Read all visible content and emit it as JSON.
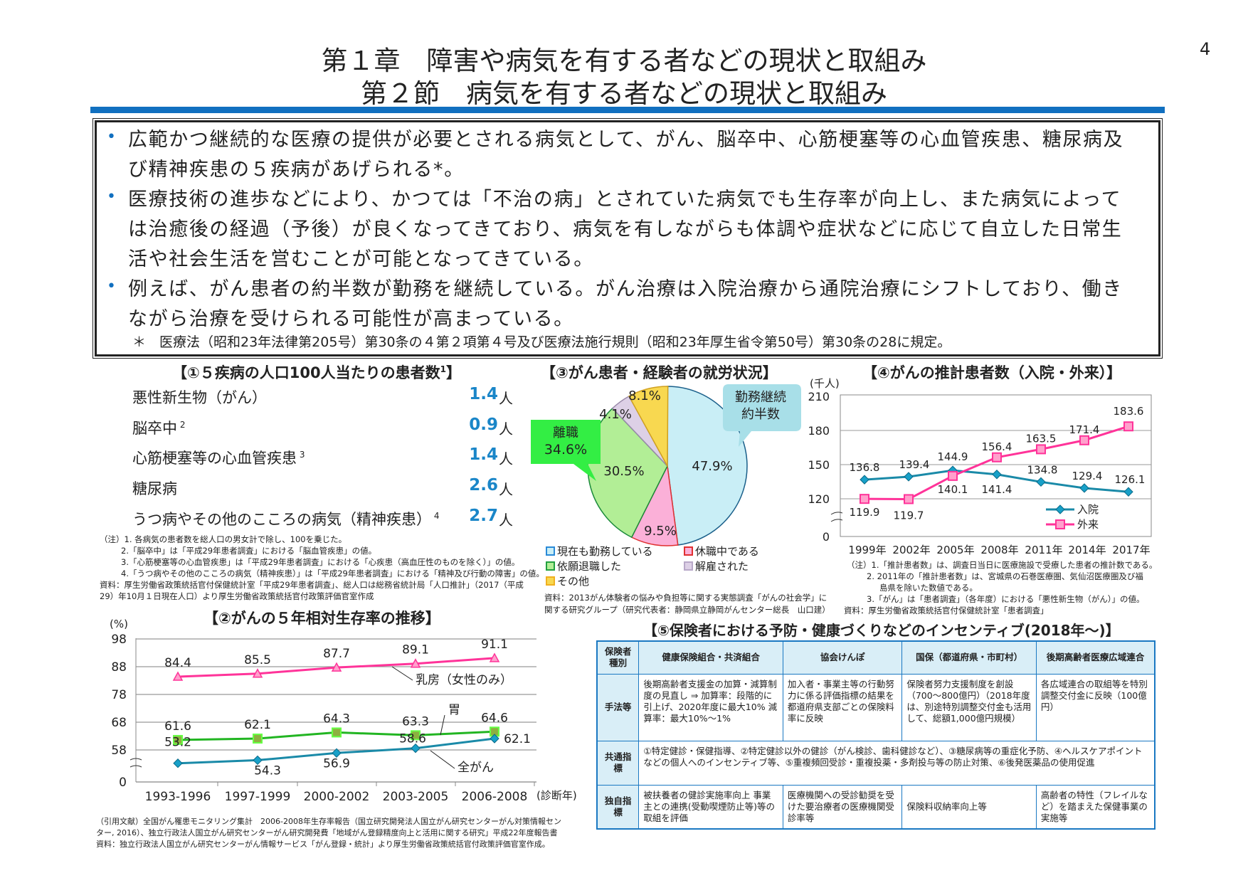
{
  "header": {
    "chapter_title": "第１章　障害や病気を有する者などの現状と取組み",
    "section_title": "第２節　病気を有する者などの現状と取組み",
    "page_number": "4"
  },
  "summary": {
    "bullet_glyph": "•",
    "bullets": [
      {
        "lines": [
          "広範かつ継続的な医療の提供が必要とされる病気として、がん、脳卒中、心筋梗塞等の心血管疾患、糖尿病及",
          "び精神疾患の５疾病があげられる*。"
        ]
      },
      {
        "lines": [
          "医療技術の進歩などにより、かつては「不治の病」とされていた病気でも生存率が向上し、また病気によって",
          "は治癒後の経過（予後）が良くなってきており、病気を有しながらも体調や症状などに応じて自立した日常生",
          "活や社会生活を営むことが可能となってきている。"
        ]
      },
      {
        "lines": [
          "例えば、がん患者の約半数が勤務を継続している。がん治療は入院治療から通院治療にシフトしており、働き",
          "ながら治療を受けられる可能性が高まっている。"
        ]
      }
    ],
    "footnote": "＊　医療法（昭和23年法律第205号）第30条の４第２項第４号及び医療法施行規則（昭和23年厚生省令第50号）第30条の28に規定。"
  },
  "panel1": {
    "title": "【①５疾病の人口100人当たりの患者数",
    "title_sup": "1",
    "title_end": "】",
    "unit": "人",
    "rows": [
      {
        "label": "悪性新生物（がん）",
        "sup": "",
        "value": "1.4"
      },
      {
        "label": "脳卒中",
        "sup": "2",
        "value": "0.9"
      },
      {
        "label": "心筋梗塞等の心血管疾患",
        "sup": "3",
        "value": "1.4"
      },
      {
        "label": "糖尿病",
        "sup": "",
        "value": "2.6"
      },
      {
        "label": "うつ病やその他のこころの病気（精神疾患）",
        "sup": "4",
        "value": "2.7"
      }
    ],
    "notes": [
      "（注）1. 各病気の患者数を総人口の男女計で除し、100を乗じた。",
      "2.「脳卒中」は「平成29年患者調査」における「脳血管疾患」の値。",
      "3.「心筋梗塞等の心血管疾患」は「平成29年患者調査」における「心疾患（高血圧性のものを除く）」の値。",
      "4.「うつ病やその他のこころの病気（精神疾患）」は「平成29年患者調査」における「精神及び行動の障害」の値。",
      "資料：厚生労働省政策統括官付保健統計室「平成29年患者調査」、総人口は総務省統計局「人口推計」（2017（平成",
      "29）年10月１日現在人口）より厚生労働省政策統括官付政策評価官室作成"
    ]
  },
  "chart_data": [
    {
      "type": "line",
      "title": "【②がんの５年相対生存率の推移】",
      "ylabel": "(%)",
      "xlabel": "(診断年)",
      "categories": [
        "1993-1996",
        "1997-1999",
        "2000-2002",
        "2003-2005",
        "2006-2008"
      ],
      "yticks": [
        0,
        58,
        68,
        78,
        88,
        98
      ],
      "axis_break": true,
      "grid": true,
      "series": [
        {
          "name": "乳房（女性のみ）",
          "color": "#ff3399",
          "marker": "triangle",
          "values": [
            84.4,
            85.5,
            87.7,
            89.1,
            91.1
          ]
        },
        {
          "name": "胃",
          "color": "#22b522",
          "marker": "square",
          "values": [
            61.6,
            62.1,
            64.3,
            63.3,
            64.6
          ]
        },
        {
          "name": "全がん",
          "color": "#1a8aa8",
          "marker": "diamond",
          "values": [
            53.2,
            54.3,
            56.9,
            58.6,
            62.1
          ]
        }
      ],
      "sources": [
        "（引用文献）全国がん罹患モニタリング集計　2006-2008年生存率報告（国立研究開発法人国立がん研究センターがん対策情報セン",
        "ター, 2016）、独立行政法人国立がん研究センターがん研究開発費「地域がん登録精度向上と活用に関する研究」平成22年度報告書",
        "資料：独立行政法人国立がん研究センターがん情報サービス「がん登録・統計」より厚生労働省政策統括官付政策評価官室作成。"
      ]
    },
    {
      "type": "pie",
      "title": "【③がん患者・経験者の就労状況】",
      "slices": [
        {
          "name": "現在も勤務している",
          "value": 47.9,
          "label": "47.9%",
          "color": "#c9eef6"
        },
        {
          "name": "休職中である",
          "value": 9.5,
          "label": "9.5%",
          "color": "#fbb0d8"
        },
        {
          "name": "依願退職した",
          "value": 30.5,
          "label": "30.5%",
          "color": "#b2ee96"
        },
        {
          "name": "解雇された",
          "value": 4.1,
          "label": "4.1%",
          "color": "#ddd0e6"
        },
        {
          "name": "その他",
          "value": 8.1,
          "label": "8.1%",
          "color": "#f8d850"
        }
      ],
      "callouts": {
        "left_line1": "離職",
        "left_line2": "34.6%",
        "right_line1": "勤務継続",
        "right_line2": "約半数"
      },
      "legend_order": [
        "現在も勤務している",
        "休職中である",
        "依願退職した",
        "解雇された",
        "その他"
      ],
      "legend_colors": [
        "#2a8ad8",
        "#e03030",
        "#22a040",
        "#b8a8c8",
        "#f0b020"
      ],
      "sources": [
        "資料：2013がん体験者の悩みや負担等に関する実態調査「がんの社会学」に",
        "関する研究グループ（研究代表者：静岡県立静岡がんセンター総長　山口建）"
      ]
    },
    {
      "type": "line",
      "title": "【④がんの推計患者数（入院・外来）】",
      "ylabel": "(千人)",
      "categories": [
        "1999年",
        "2002年",
        "2005年",
        "2008年",
        "2011年",
        "2014年",
        "2017年"
      ],
      "yticks": [
        0,
        120,
        150,
        180,
        210
      ],
      "axis_break": true,
      "grid": true,
      "legend": "bottom-right",
      "series": [
        {
          "name": "入院",
          "color": "#1a8aa8",
          "marker": "diamond",
          "values": [
            136.8,
            139.4,
            144.9,
            141.4,
            134.8,
            129.4,
            126.1
          ]
        },
        {
          "name": "外来",
          "color": "#ff3399",
          "marker": "square",
          "values": [
            119.9,
            119.7,
            140.1,
            156.4,
            163.5,
            171.4,
            183.6
          ]
        }
      ],
      "notes": [
        "（注）1.「推計患者数」は、調査日当日に医療施設で受療した患者の推計数である。",
        "2. 2011年の「推計患者数」は、宮城県の石巻医療圏、気仙沼医療圏及び福",
        "島県を除いた数値である。",
        "3.「がん」は「患者調査」（各年度）における「悪性新生物（がん）」の値。",
        "資料：厚生労働省政策統括官付保健統計室「患者調査」"
      ]
    }
  ],
  "panel5": {
    "title": "【⑤保険者における予防・健康づくりなどのインセンティブ(2018年〜)】",
    "headers": [
      "保険者種別",
      "健康保険組合・共済組合",
      "協会けんぽ",
      "国保（都道府県・市町村）",
      "後期高齢者医療広域連合"
    ],
    "rows": [
      {
        "head": "手法等",
        "cells": [
          "後期高齢者支援金の加算・減算制度の見直し ⇒ 加算率：段階的に引上げ、2020年度に最大10% 減算率：最大10%〜1%",
          "加入者・事業主等の行動努力に係る評価指標の結果を都道府県支部ごとの保険料率に反映",
          "保険者努力支援制度を創設（700〜800億円）（2018年度は、別途特別調整交付金も活用して、総額1,000億円規模）",
          "各広域連合の取組等を特別調整交付金に反映（100億円）"
        ]
      },
      {
        "head": "共通指標",
        "span": "①特定健診・保健指導、②特定健診以外の健診（がん検診、歯科健診など）、③糖尿病等の重症化予防、④ヘルスケアポイントなどの個人へのインセンティブ等、⑤重複頻回受診・重複投薬・多剤投与等の防止対策、⑥後発医薬品の使用促進"
      },
      {
        "head": "独自指標",
        "cells": [
          "被扶養者の健診実施率向上 事業主との連携(受動喫煙防止等)等の取組を評価",
          "医療機関への受診勧奨を受けた要治療者の医療機関受診率等",
          "保険料収納率向上等",
          "高齢者の特性（フレイルなど）を踏まえた保健事業の実施等"
        ]
      }
    ]
  }
}
